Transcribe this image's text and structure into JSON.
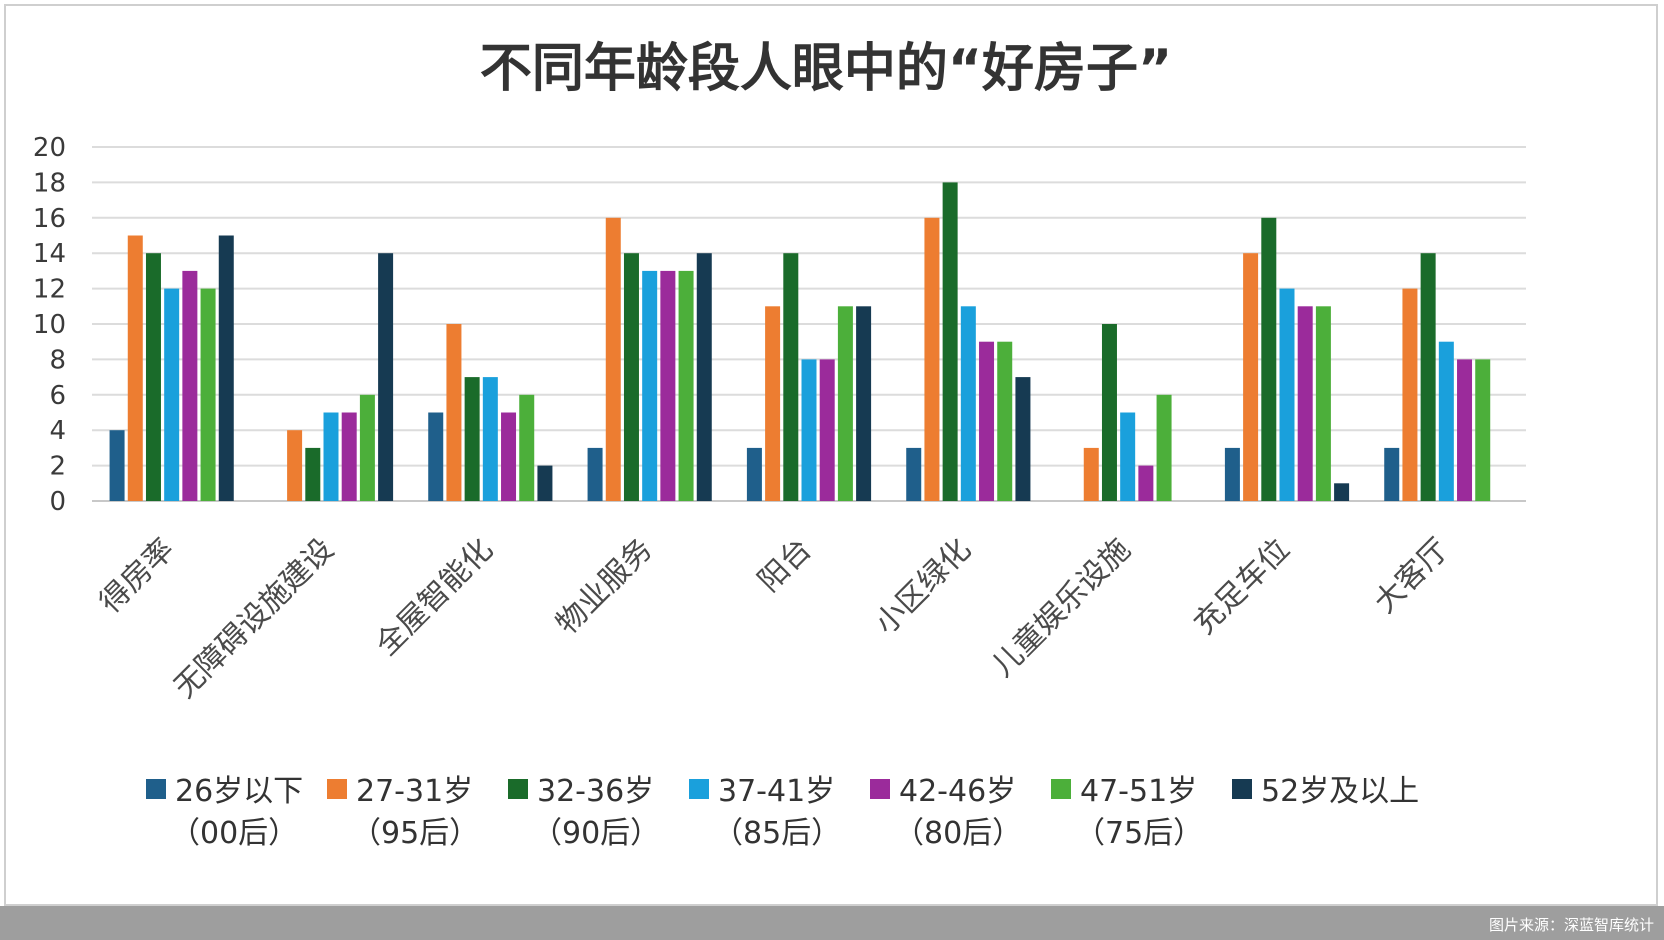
{
  "source_credit": "图片来源：深蓝智库统计",
  "chart_data": {
    "type": "bar",
    "title": "不同年龄段人眼中的“好房子”",
    "xlabel": "",
    "ylabel": "",
    "ylim": [
      0,
      20
    ],
    "yticks": [
      0,
      2,
      4,
      6,
      8,
      10,
      12,
      14,
      16,
      18,
      20
    ],
    "grid": true,
    "legend_position": "bottom",
    "categories": [
      "得房率",
      "无障碍设施建设",
      "全屋智能化",
      "物业服务",
      "阳台",
      "小区绿化",
      "儿童娱乐设施",
      "充足车位",
      "大客厅"
    ],
    "series": [
      {
        "name": "26岁以下",
        "sub": "（00后）",
        "color": "#1f5f8b",
        "values": [
          4,
          0,
          5,
          3,
          3,
          3,
          0,
          3,
          3
        ]
      },
      {
        "name": "27-31岁",
        "sub": "（95后）",
        "color": "#ed7d31",
        "values": [
          15,
          4,
          10,
          16,
          11,
          16,
          3,
          14,
          12
        ]
      },
      {
        "name": "32-36岁",
        "sub": "（90后）",
        "color": "#1a6b2a",
        "values": [
          14,
          3,
          7,
          14,
          14,
          18,
          10,
          16,
          14
        ]
      },
      {
        "name": "37-41岁",
        "sub": "（85后）",
        "color": "#1aa0dc",
        "values": [
          12,
          5,
          7,
          13,
          8,
          11,
          5,
          12,
          9
        ]
      },
      {
        "name": "42-46岁",
        "sub": "（80后）",
        "color": "#9b2b9b",
        "values": [
          13,
          5,
          5,
          13,
          8,
          9,
          2,
          11,
          8
        ]
      },
      {
        "name": "47-51岁",
        "sub": "（75后）",
        "color": "#4caf3a",
        "values": [
          12,
          6,
          6,
          13,
          11,
          9,
          6,
          11,
          8
        ]
      },
      {
        "name": "52岁及以上",
        "sub": "",
        "color": "#163a52",
        "values": [
          15,
          14,
          2,
          14,
          11,
          7,
          0,
          1,
          0
        ]
      }
    ]
  }
}
